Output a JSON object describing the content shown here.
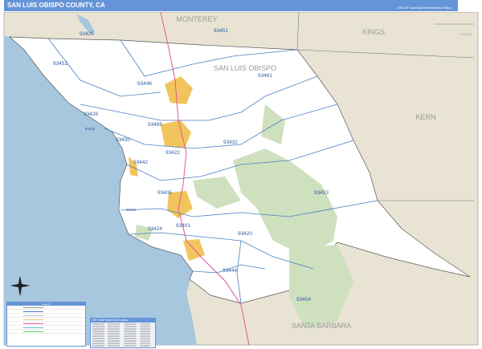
{
  "header": {
    "title": "SAN LUIS OBISPO COUNTY, CA",
    "subtitle": "2020 ZIP Code Business Reference Edition",
    "logo_text": "Market MAPS"
  },
  "colors": {
    "header": "#6594d8",
    "ocean": "#a7c7df",
    "county": "#ffffff",
    "neighbor": "#e9e3d3",
    "forest": "#cfe0bf",
    "city": "#f2c55c",
    "zip_boundary": "#4a7fc4",
    "highway": "#e0549c"
  },
  "counties": [
    "MONTEREY",
    "KINGS",
    "TULARE",
    "SAN LUIS OBISPO",
    "KERN",
    "SANTA BARBARA"
  ],
  "zips": [
    "93426",
    "93451",
    "93452",
    "93446",
    "93461",
    "93428",
    "93465",
    "93435",
    "93430",
    "93422",
    "93432",
    "93442",
    "93405",
    "93453",
    "93402",
    "93401",
    "93424",
    "93420",
    "93444",
    "93454"
  ],
  "legend": {
    "title": "Legend"
  },
  "index": {
    "title": "ZIP Code Index/Grid Locator"
  }
}
